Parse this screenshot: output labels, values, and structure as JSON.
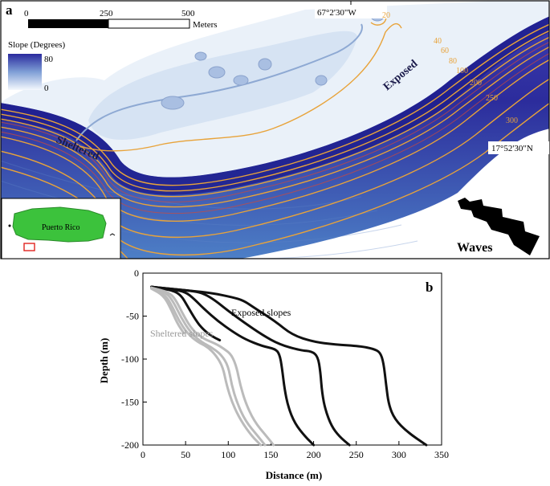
{
  "panel_a": {
    "label": "a",
    "scale_bar": {
      "ticks": [
        "0",
        "250",
        "500"
      ],
      "unit": "Meters"
    },
    "legend": {
      "title": "Slope (Degrees)",
      "max": "80",
      "min": "0"
    },
    "longitude": "67°2'30\"W",
    "latitude": "17°52'30\"N",
    "contours": [
      "20",
      "40",
      "60",
      "80",
      "100",
      "200",
      "250",
      "300"
    ],
    "exposed_label": "Exposed",
    "sheltered_label": "Sheltered",
    "inset_label": "Puerto Rico",
    "waves_label": "Waves",
    "colors": {
      "contour": "#e8a33a",
      "slope_low": "#f4f8fd",
      "slope_high": "#2a2a9e",
      "island": "#3cc23c",
      "inset_box": "#e0231e"
    }
  },
  "panel_b": {
    "label": "b",
    "annotation_exposed": "Exposed slopes",
    "annotation_sheltered": "Sheltered slopes"
  },
  "chart_data": {
    "type": "line",
    "xlabel": "Distance (m)",
    "ylabel": "Depth (m)",
    "xlim": [
      0,
      350
    ],
    "ylim": [
      -200,
      0
    ],
    "xticks": [
      0,
      50,
      100,
      150,
      200,
      250,
      300,
      350
    ],
    "yticks": [
      0,
      -50,
      -100,
      -150,
      -200
    ],
    "grid": false,
    "series": [
      {
        "name": "Exposed slopes",
        "color": "#111111",
        "points": [
          [
            10,
            -16
          ],
          [
            50,
            -20
          ],
          [
            80,
            -23
          ],
          [
            105,
            -28
          ],
          [
            118,
            -32
          ],
          [
            130,
            -40
          ],
          [
            155,
            -56
          ],
          [
            175,
            -72
          ],
          [
            200,
            -80
          ],
          [
            225,
            -83
          ],
          [
            255,
            -85
          ],
          [
            270,
            -88
          ],
          [
            278,
            -92
          ],
          [
            282,
            -104
          ],
          [
            285,
            -130
          ],
          [
            288,
            -153
          ],
          [
            295,
            -170
          ],
          [
            310,
            -185
          ],
          [
            332,
            -200
          ]
        ]
      },
      {
        "name": "Exposed slopes",
        "color": "#111111",
        "points": [
          [
            10,
            -16
          ],
          [
            40,
            -19
          ],
          [
            60,
            -21
          ],
          [
            72,
            -24
          ],
          [
            85,
            -32
          ],
          [
            100,
            -44
          ],
          [
            118,
            -57
          ],
          [
            140,
            -72
          ],
          [
            160,
            -83
          ],
          [
            185,
            -90
          ],
          [
            198,
            -91
          ],
          [
            205,
            -97
          ],
          [
            208,
            -115
          ],
          [
            210,
            -140
          ],
          [
            214,
            -160
          ],
          [
            221,
            -178
          ],
          [
            230,
            -190
          ],
          [
            242,
            -200
          ]
        ]
      },
      {
        "name": "Exposed slopes",
        "color": "#111111",
        "points": [
          [
            10,
            -16
          ],
          [
            35,
            -19
          ],
          [
            50,
            -22
          ],
          [
            60,
            -30
          ],
          [
            72,
            -42
          ],
          [
            88,
            -56
          ],
          [
            105,
            -68
          ],
          [
            120,
            -77
          ],
          [
            140,
            -85
          ],
          [
            155,
            -88
          ],
          [
            160,
            -94
          ],
          [
            163,
            -110
          ],
          [
            166,
            -135
          ],
          [
            170,
            -155
          ],
          [
            178,
            -175
          ],
          [
            190,
            -190
          ],
          [
            200,
            -200
          ]
        ]
      },
      {
        "name": "Exposed slopes",
        "color": "#111111",
        "points": [
          [
            10,
            -16
          ],
          [
            35,
            -20
          ],
          [
            45,
            -26
          ],
          [
            52,
            -38
          ],
          [
            62,
            -55
          ],
          [
            70,
            -65
          ],
          [
            80,
            -73
          ],
          [
            90,
            -78
          ]
        ]
      },
      {
        "name": "Sheltered slopes",
        "color": "#bbbbbb",
        "points": [
          [
            10,
            -17
          ],
          [
            30,
            -22
          ],
          [
            38,
            -30
          ],
          [
            48,
            -50
          ],
          [
            58,
            -66
          ],
          [
            70,
            -76
          ],
          [
            85,
            -82
          ],
          [
            95,
            -88
          ],
          [
            104,
            -95
          ],
          [
            110,
            -110
          ],
          [
            114,
            -130
          ],
          [
            120,
            -150
          ],
          [
            130,
            -172
          ],
          [
            145,
            -190
          ],
          [
            153,
            -200
          ]
        ]
      },
      {
        "name": "Sheltered slopes",
        "color": "#bbbbbb",
        "points": [
          [
            10,
            -17
          ],
          [
            28,
            -23
          ],
          [
            36,
            -34
          ],
          [
            45,
            -52
          ],
          [
            55,
            -68
          ],
          [
            68,
            -80
          ],
          [
            80,
            -86
          ],
          [
            92,
            -95
          ],
          [
            100,
            -108
          ],
          [
            104,
            -130
          ],
          [
            110,
            -150
          ],
          [
            120,
            -172
          ],
          [
            135,
            -190
          ],
          [
            143,
            -200
          ]
        ]
      },
      {
        "name": "Sheltered slopes",
        "color": "#bbbbbb",
        "points": [
          [
            10,
            -18
          ],
          [
            26,
            -25
          ],
          [
            34,
            -38
          ],
          [
            42,
            -55
          ],
          [
            52,
            -70
          ],
          [
            64,
            -80
          ],
          [
            76,
            -86
          ],
          [
            86,
            -96
          ],
          [
            94,
            -110
          ],
          [
            98,
            -130
          ],
          [
            105,
            -152
          ],
          [
            115,
            -172
          ],
          [
            128,
            -190
          ],
          [
            138,
            -200
          ]
        ]
      },
      {
        "name": "Sheltered slopes",
        "color": "#bbbbbb",
        "points": [
          [
            10,
            -18
          ],
          [
            24,
            -26
          ],
          [
            32,
            -40
          ],
          [
            40,
            -58
          ],
          [
            48,
            -70
          ]
        ]
      }
    ]
  }
}
